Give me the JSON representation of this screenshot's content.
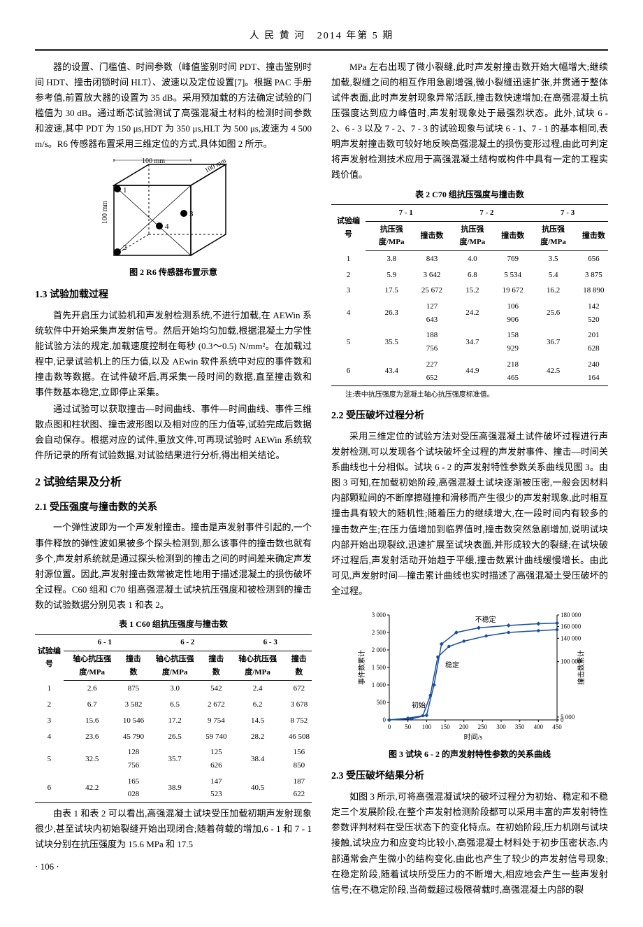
{
  "header": {
    "journal": "人 民 黄 河",
    "issue": "2014 年第 5 期"
  },
  "left": {
    "p1": "器的设置、门槛值、时间参数（峰值鉴别时间 PDT、撞击鉴别时间 HDT、撞击闭锁时间 HLT）、波速以及定位设置[7]。根据 PAC 手册参考值,前置放大器的设置为 35 dB。采用预加载的方法确定试验的门槛值为 30 dB。通过断芯试验测试了高强混凝土材料的检测时间参数和波速,其中 PDT 为 150 μs,HDT 为 350 μs,HLT 为 500 μs,波速为 4 500 m/s。R6 传感器布置采用三维定位的方式,具体如图 2 所示。",
    "fig2": {
      "width_label": "100 mm",
      "depth_label": "100 mm",
      "height_label": "100 mm",
      "nodes": [
        "1",
        "2",
        "3",
        "4"
      ],
      "caption": "图 2   R6 传感器布置示意"
    },
    "h13": "1.3   试验加载过程",
    "p2": "首先开启压力试验机和声发射检测系统,不进行加载,在 AEWin 系统软件中开始采集声发射信号。然后开始均匀加载,根据混凝土力学性能试验方法的规定,加载速度控制在每秒 (0.3～0.5) N/mm²。在加载过程中,记录试验机上的压力值,以及 AEwin 软件系统中对应的事件数和撞击数等数据。在试件破坏后,再采集一段时间的数据,直至撞击数和事件数基本稳定,立即停止采集。",
    "p3": "通过试验可以获取撞击—时间曲线、事件—时间曲线、事件三维散点图和柱状图、撞击波形图以及相对应的压力值等,试验完成后数据会自动保存。根据对应的试件,重放文件,可再现试验时 AEWin 系统软件所记录的所有试验数据,对试验结果进行分析,得出相关结论。",
    "h2_2": "2   试验结果及分析",
    "h21": "2.1   受压强度与撞击数的关系",
    "p4": "一个弹性波即为一个声发射撞击。撞击是声发射事件引起的,一个事件释放的弹性波如果被多个探头检测到,那么该事件的撞击数也就有多个,声发射系统就是通过探头检测到的撞击之间的时间差来确定声发射源位置。因此,声发射撞击数常被定性地用于描述混凝土的损伤破坏全过程。C60 组和 C70 组高强混凝土试块抗压强度和被检测到的撞击数的试验数据分别见表 1 和表 2。",
    "table1": {
      "caption": "表 1   C60 组抗压强度与撞击数",
      "col_group_labels": [
        "6 - 1",
        "6 - 2",
        "6 - 3"
      ],
      "row_head": "试验编号",
      "sub_cols": [
        "轴心抗压强度/MPa",
        "撞击数"
      ],
      "rows": [
        [
          "1",
          "2.6",
          "875",
          "3.0",
          "542",
          "2.4",
          "672"
        ],
        [
          "2",
          "6.7",
          "3 582",
          "6.5",
          "2 672",
          "6.2",
          "3 678"
        ],
        [
          "3",
          "15.6",
          "10 546",
          "17.2",
          "9 754",
          "14.5",
          "8 752"
        ],
        [
          "4",
          "23.6",
          "45 790",
          "26.5",
          "59 740",
          "28.2",
          "46 508"
        ],
        [
          "5",
          "32.5",
          "128 756",
          "35.7",
          "125 626",
          "38.4",
          "156 850"
        ],
        [
          "6",
          "42.2",
          "165 028",
          "38.9",
          "147 523",
          "40.5",
          "187 622"
        ]
      ]
    },
    "p5": "由表 1 和表 2 可以看出,高强混凝土试块受压加载初期声发射现象很少,甚至试块内初始裂缝开始出现闭合;随着荷载的增加,6 - 1 和 7 - 1 试块分别在抗压强度为 15.6 MPa 和 17.5"
  },
  "right": {
    "p1": "MPa 左右出现了微小裂缝,此时声发射撞击数开始大幅增大;继续加载,裂缝之间的相互作用急剧增强,微小裂缝迅速扩张,并贯通于整体试件表面,此时声发射现象异常活跃,撞击数快速增加;在高强混凝土抗压强度达到应力峰值时,声发射现象处于最强烈状态。此外,试块 6 - 2、6 - 3 以及 7 - 2、7 - 3 的试验现象与试块 6 - 1、7 - 1 的基本相同,表明声发射撞击数可较好地反映高强混凝土的损伤变形过程,由此可判定将声发射检测技术应用于高强混凝土结构或构件中具有一定的工程实践价值。",
    "table2": {
      "caption": "表 2   C70 组抗压强度与撞击数",
      "col_group_labels": [
        "7 - 1",
        "7 - 2",
        "7 - 3"
      ],
      "row_head": "试验编号",
      "sub_cols": [
        "抗压强度/MPa",
        "撞击数"
      ],
      "rows": [
        [
          "1",
          "3.8",
          "843",
          "4.0",
          "769",
          "3.5",
          "656"
        ],
        [
          "2",
          "5.9",
          "3 642",
          "6.8",
          "5 534",
          "5.4",
          "3 875"
        ],
        [
          "3",
          "17.5",
          "25 672",
          "15.2",
          "19 672",
          "16.2",
          "18 890"
        ],
        [
          "4",
          "26.3",
          "127 643",
          "24.2",
          "106 906",
          "25.6",
          "142 520"
        ],
        [
          "5",
          "35.5",
          "188 756",
          "34.7",
          "158 929",
          "36.7",
          "201 628"
        ],
        [
          "6",
          "43.4",
          "227 652",
          "44.9",
          "218 465",
          "42.5",
          "240 164"
        ]
      ],
      "note": "注:表中抗压强度为混凝土轴心抗压强度标准值。"
    },
    "h22": "2.2   受压破坏过程分析",
    "p2": "采用三维定位的试验方法对受压高强混凝土试件破坏过程进行声发射检测,可以发现各个试块破坏全过程的声发射事件、撞击—时间关系曲线也十分相似。试块 6 - 2 的声发射特性参数关系曲线见图 3。由图 3 可知,在加载初始阶段,高强混凝土试块逐渐被压密,一般会因材料内部颗粒间的不断摩擦碰撞和滑移而产生很少的声发射现象,此时相互撞击具有较大的随机性;随着压力的继续增大,在一段时间内有较多的撞击数产生;在压力值增加到临界值时,撞击数突然急剧增加,说明试块内部开始出现裂纹,迅速扩展至试块表面,并形成较大的裂缝;在试块破坏过程后,声发射活动开始趋于平缓,撞击数累计曲线缓慢增长。由此可见,声发射时间—撞击累计曲线也实时描述了高强混凝土受压破坏的全过程。",
    "fig3": {
      "caption": "图 3   试块 6 - 2 的声发射特性参数的关系曲线",
      "xlabel": "时间/s",
      "ylabel_left": "事件数累计",
      "ylabel_right": "撞击数累计",
      "xlim": [
        0,
        450
      ],
      "xtick_step": 50,
      "ylim_left": [
        0,
        3000
      ],
      "yleft_ticks": [
        0,
        500,
        1000,
        1500,
        2000,
        2500,
        3000
      ],
      "ylim_right": [
        0,
        180000
      ],
      "yright_ticks": [
        0,
        5000,
        100000,
        140000,
        160000,
        180000
      ],
      "regions": {
        "initial": "初始",
        "stable": "稳定",
        "unstable": "不稳定"
      },
      "series_colors": {
        "events": "#1a4fa0",
        "hits": "#1a4fa0"
      },
      "events_curve": [
        [
          0,
          0
        ],
        [
          50,
          50
        ],
        [
          90,
          120
        ],
        [
          110,
          700
        ],
        [
          130,
          1800
        ],
        [
          160,
          2100
        ],
        [
          200,
          2250
        ],
        [
          260,
          2400
        ],
        [
          320,
          2500
        ],
        [
          400,
          2550
        ],
        [
          450,
          2580
        ]
      ],
      "hits_curve": [
        [
          0,
          0
        ],
        [
          60,
          2000
        ],
        [
          100,
          8000
        ],
        [
          120,
          60000
        ],
        [
          140,
          130000
        ],
        [
          180,
          150000
        ],
        [
          240,
          158000
        ],
        [
          320,
          162000
        ],
        [
          400,
          165000
        ],
        [
          450,
          166000
        ]
      ]
    },
    "h23": "2.3   受压破坏结果分析",
    "p3": "如图 3 所示,可将高强混凝试块的破坏过程分为初始、稳定和不稳定三个发展阶段,在整个声发射检测阶段都可以采用丰富的声发射特性参数评判材料在受压状态下的变化特点。在初始阶段,压力机刚与试块接触,试块应力和应变均比较小,高强混凝土材料处于初步压密状态,内部通常会产生微小的结构变化,由此也产生了较少的声发射信号现象;在稳定阶段,随着试块所受压力的不断增大,相应地会产生一些声发射信号;在不稳定阶段,当荷载超过极限荷载时,高强混凝土内部的裂"
  },
  "page": "· 106 ·"
}
